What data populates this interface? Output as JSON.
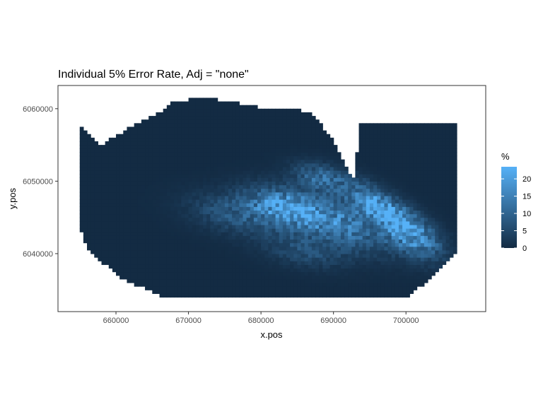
{
  "chart_data": {
    "type": "heatmap",
    "title": "Individual 5% Error Rate, Adj = \"none\"",
    "xlabel": "x.pos",
    "ylabel": "y.pos",
    "xlim": [
      652000,
      711000
    ],
    "ylim": [
      6032000,
      6063200
    ],
    "x_ticks": [
      {
        "value": 660000,
        "label": "660000"
      },
      {
        "value": 670000,
        "label": "670000"
      },
      {
        "value": 680000,
        "label": "680000"
      },
      {
        "value": 690000,
        "label": "690000"
      },
      {
        "value": 700000,
        "label": "700000"
      }
    ],
    "y_ticks": [
      {
        "value": 6040000,
        "label": "6040000"
      },
      {
        "value": 6050000,
        "label": "6050000"
      },
      {
        "value": 6060000,
        "label": "6060000"
      }
    ],
    "legend": {
      "title": "%",
      "position": "right",
      "min": 0,
      "max": 23.5,
      "ticks": [
        {
          "value": 0,
          "label": "0"
        },
        {
          "value": 5,
          "label": "5"
        },
        {
          "value": 10,
          "label": "10"
        },
        {
          "value": 15,
          "label": "15"
        },
        {
          "value": 20,
          "label": "20"
        }
      ]
    },
    "colors": {
      "low": "#132b43",
      "high": "#56b1f7",
      "panel_border": "#333333",
      "background": "#ffffff"
    },
    "grid": false,
    "region": {
      "main": [
        [
          655000,
          6057500
        ],
        [
          658000,
          6055000
        ],
        [
          662000,
          6057500
        ],
        [
          666000,
          6059500
        ],
        [
          668000,
          6061000
        ],
        [
          672000,
          6061500
        ],
        [
          676000,
          6061000
        ],
        [
          681000,
          6060000
        ],
        [
          684000,
          6060000
        ],
        [
          687000,
          6059500
        ],
        [
          690000,
          6055500
        ],
        [
          692000,
          6051500
        ],
        [
          693000,
          6050000
        ],
        [
          693500,
          6058000
        ],
        [
          707000,
          6058000
        ],
        [
          707000,
          6040000
        ],
        [
          704000,
          6037000
        ],
        [
          700000,
          6034000
        ],
        [
          692000,
          6033800
        ],
        [
          667000,
          6033800
        ],
        [
          661000,
          6036500
        ],
        [
          656000,
          6040500
        ],
        [
          655000,
          6044000
        ]
      ]
    },
    "hotspots": [
      {
        "x": 697000,
        "y": 6046000,
        "sx": 4200,
        "sy": 1400,
        "peak": 21,
        "angle": -32
      },
      {
        "x": 690000,
        "y": 6044500,
        "sx": 5200,
        "sy": 2000,
        "peak": 15,
        "angle": -20
      },
      {
        "x": 683000,
        "y": 6046500,
        "sx": 3500,
        "sy": 1600,
        "peak": 14,
        "angle": -15
      },
      {
        "x": 677000,
        "y": 6045500,
        "sx": 4500,
        "sy": 1800,
        "peak": 8,
        "angle": -10
      },
      {
        "x": 701000,
        "y": 6042000,
        "sx": 3000,
        "sy": 1600,
        "peak": 12,
        "angle": -30
      },
      {
        "x": 688000,
        "y": 6050500,
        "sx": 2500,
        "sy": 1200,
        "peak": 10,
        "angle": -15
      },
      {
        "x": 686000,
        "y": 6040500,
        "sx": 4000,
        "sy": 1500,
        "peak": 6,
        "angle": -10
      }
    ],
    "grid_cell": 500
  }
}
